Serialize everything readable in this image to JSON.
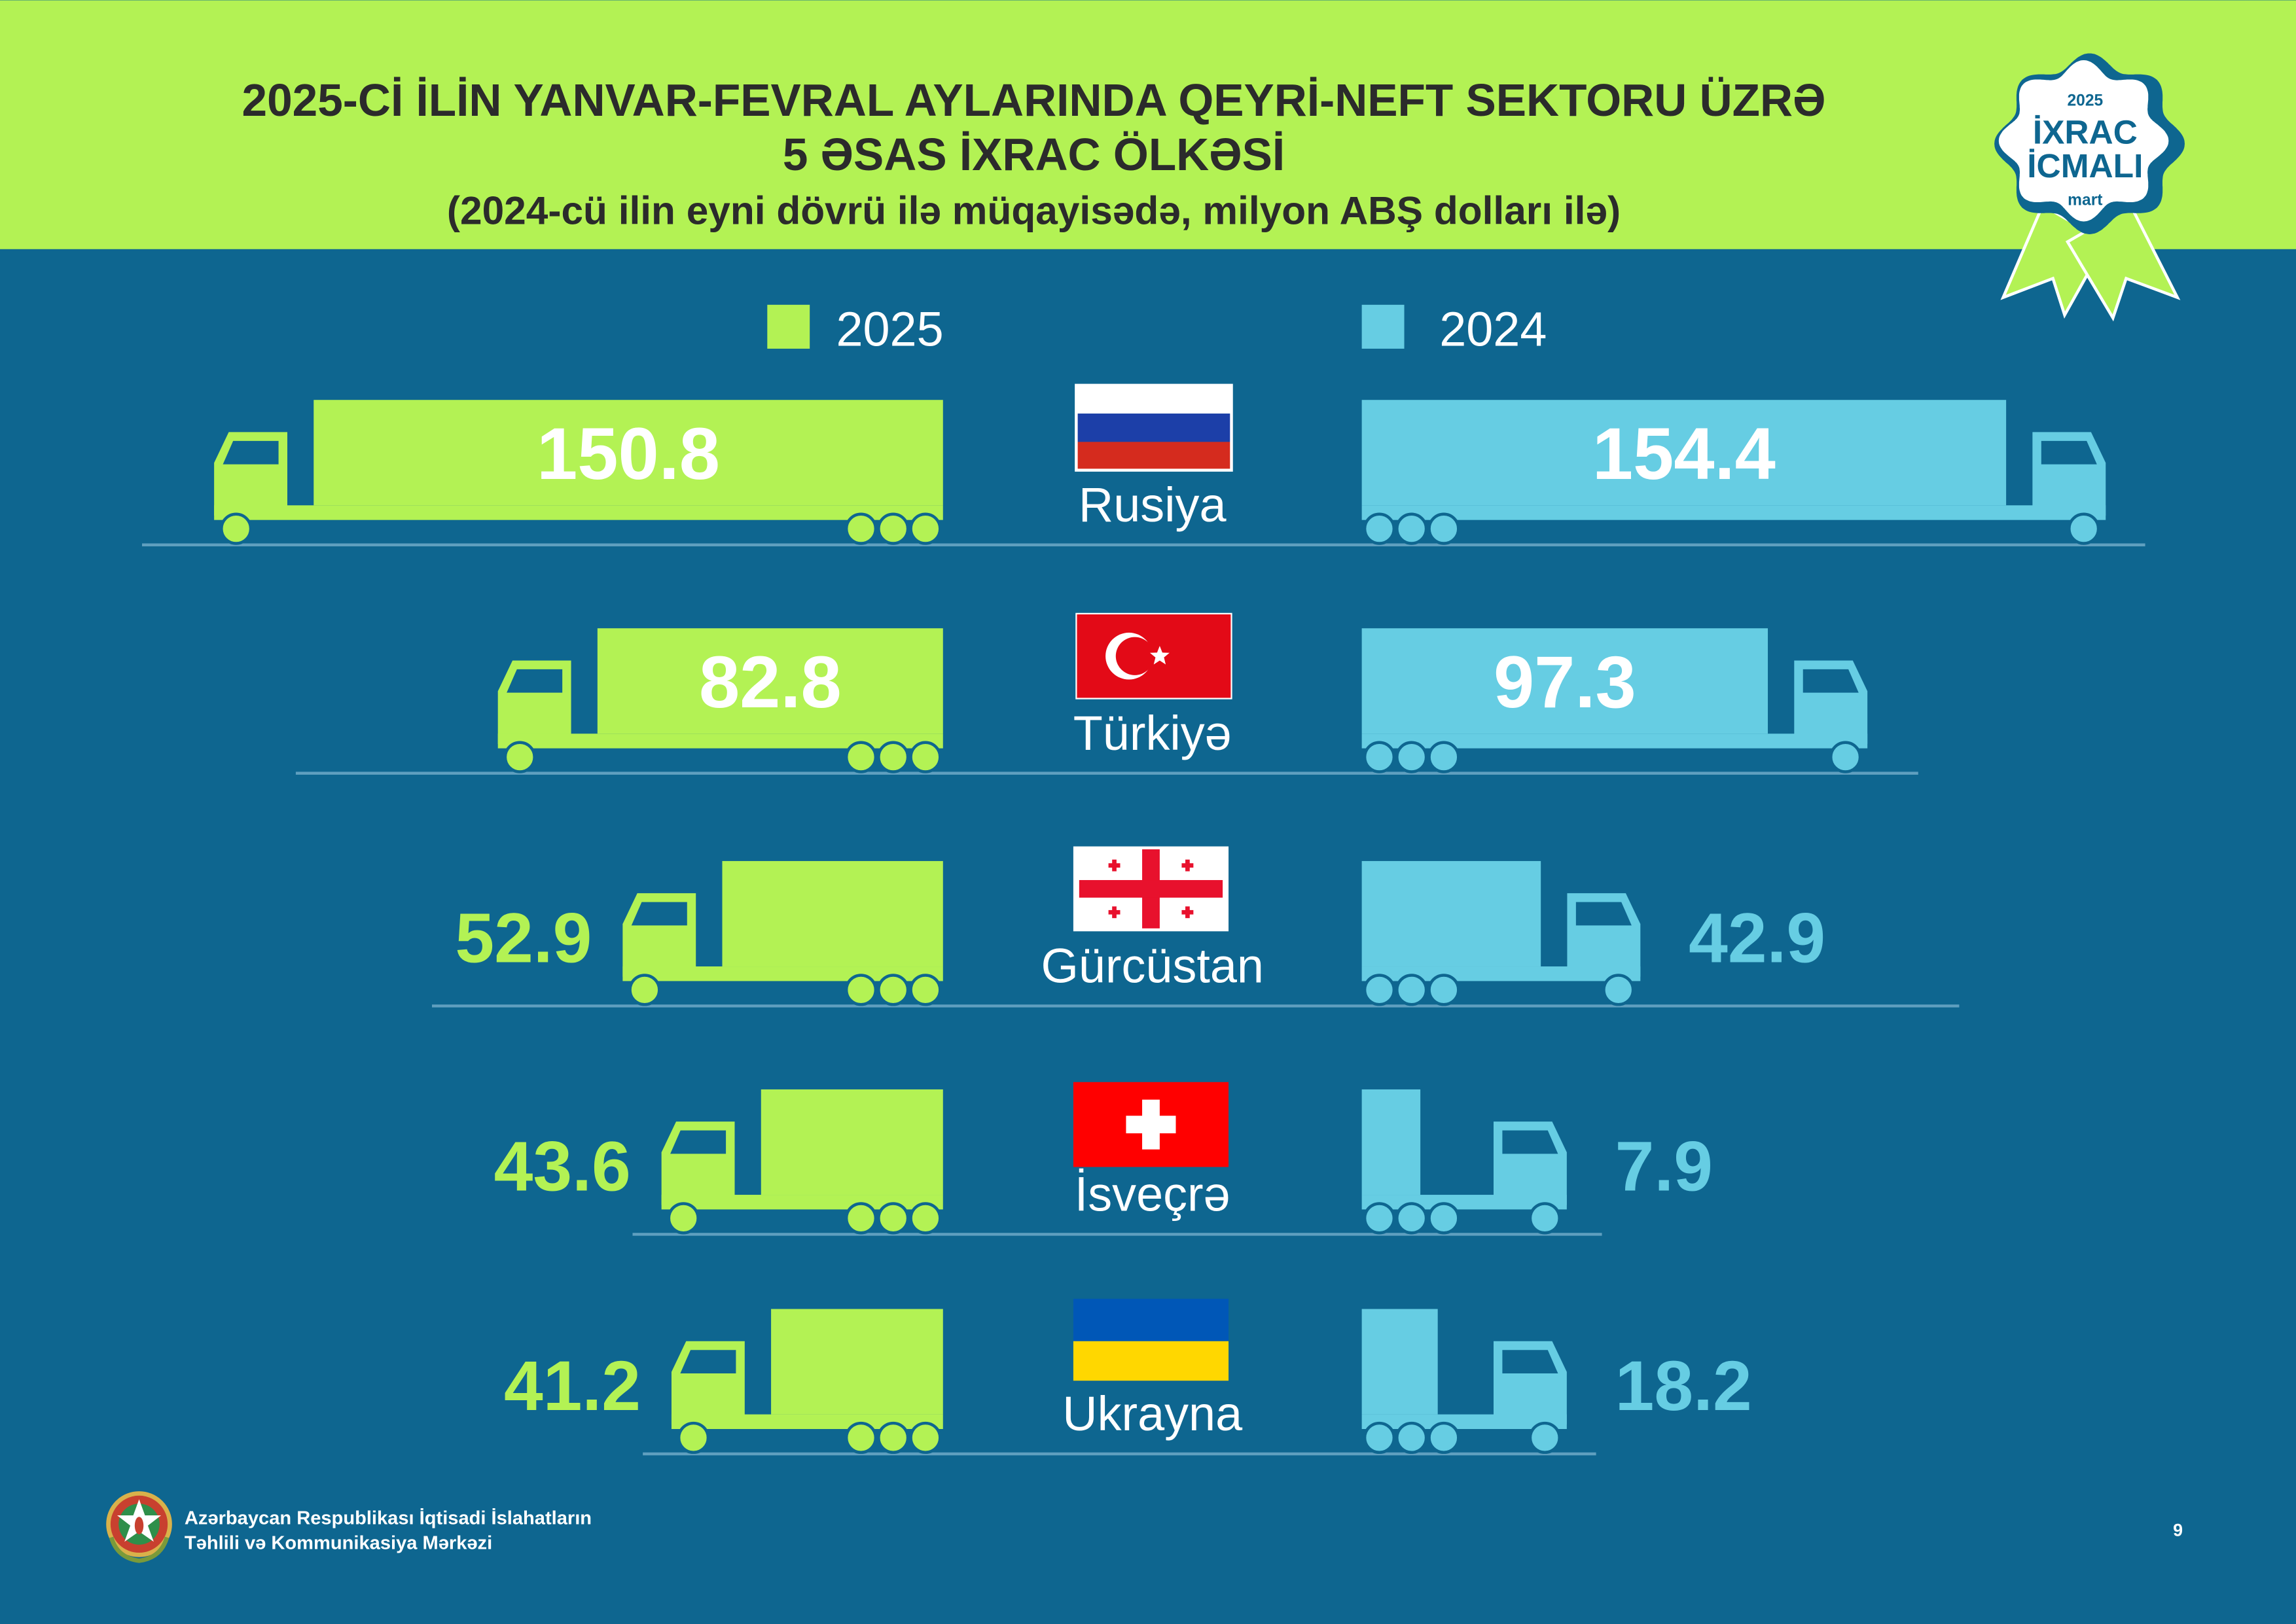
{
  "header": {
    "title_line1": "2025-Cİ İLİN YANVAR-FEVRAL AYLARINDA QEYRİ-NEFT SEKTORU ÜZRƏ",
    "title_line2": "5 ƏSAS İXRAC ÖLKƏSİ",
    "subtitle": "(2024-cü ilin eyni dövrü ilə müqayisədə, milyon ABŞ dolları ilə)"
  },
  "badge": {
    "year": "2025",
    "line1": "İXRAC",
    "line2": "İCMALI",
    "month": "mart"
  },
  "colors": {
    "header_bg": "#b3f254",
    "page_bg": "#0e6690",
    "series_2025": "#b3f254",
    "series_2024": "#66cde3",
    "ground_line": "#5f9fbf"
  },
  "chart_data": {
    "type": "bar",
    "orientation": "horizontal-diverging",
    "legend_position": "top",
    "categories": [
      "Rusiya",
      "Türkiyə",
      "Gürcüstan",
      "İsveçrə",
      "Ukrayna"
    ],
    "flags": [
      "russia-flag",
      "turkey-flag",
      "georgia-flag",
      "switzerland-flag",
      "ukraine-flag"
    ],
    "series": [
      {
        "name": "2025",
        "values": [
          150.8,
          82.8,
          52.9,
          43.6,
          41.2
        ],
        "labels": [
          "150.8",
          "82.8",
          "52.9",
          "43.6",
          "41.2"
        ]
      },
      {
        "name": "2024",
        "values": [
          154.4,
          97.3,
          42.9,
          7.9,
          18.2
        ],
        "labels": [
          "154.4",
          "97.3",
          "42.9",
          "7.9",
          "18.2"
        ]
      }
    ]
  },
  "footer": {
    "org_line1": "Azərbaycan Respublikası İqtisadi İslahatların",
    "org_line2": "Təhlili və Kommunikasiya Mərkəzi",
    "page_number": "9"
  }
}
